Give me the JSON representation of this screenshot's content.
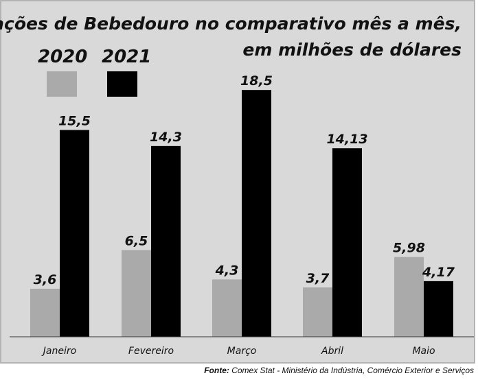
{
  "chart_data": {
    "type": "bar",
    "title_lines": [
      "Exportações de Bebedouro no comparativo mês a mês,",
      "em milhões de dólares"
    ],
    "categories": [
      "Janeiro",
      "Fevereiro",
      "Março",
      "Abril",
      "Maio"
    ],
    "series": [
      {
        "name": "2020",
        "color": "#aaaaaa",
        "values": [
          3.6,
          6.5,
          4.3,
          3.7,
          5.98
        ],
        "labels": [
          "3,6",
          "6,5",
          "4,3",
          "3,7",
          "5,98"
        ]
      },
      {
        "name": "2021",
        "color": "#000000",
        "values": [
          15.5,
          14.3,
          18.5,
          14.13,
          4.17
        ],
        "labels": [
          "15,5",
          "14,3",
          "18,5",
          "14,13",
          "4,17"
        ]
      }
    ],
    "ylim": [
      0,
      20
    ],
    "legend_position": "top-left",
    "grid": false
  },
  "source": {
    "label": "Fonte:",
    "text": "Comex Stat - Ministério da Indústria, Comércio Exterior e Serviços"
  }
}
